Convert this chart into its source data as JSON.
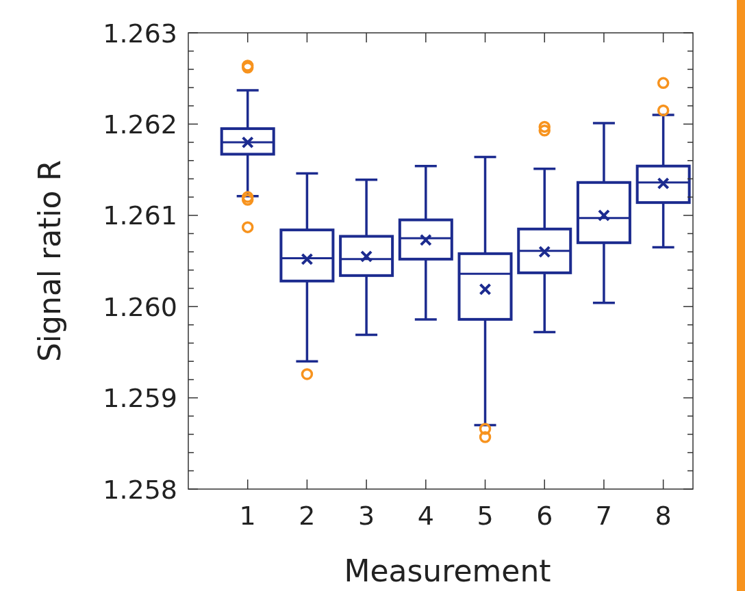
{
  "chart_data": {
    "type": "box",
    "xlabel": "Measurement",
    "ylabel": "Signal ratio R",
    "x": [
      1,
      2,
      3,
      4,
      5,
      6,
      7,
      8
    ],
    "xlim": [
      0,
      8.5
    ],
    "xticks": [
      1,
      2,
      3,
      4,
      5,
      6,
      7,
      8
    ],
    "ylim": [
      1.258,
      1.263
    ],
    "yticks": [
      1.258,
      {
        "value": 1.2582,
        "label": null
      },
      {
        "value": 1.2584,
        "label": null
      },
      {
        "value": 1.2586,
        "label": null
      },
      {
        "value": 1.2588,
        "label": null
      },
      1.259,
      {
        "value": 1.2592,
        "label": null
      },
      {
        "value": 1.2594,
        "label": null
      },
      {
        "value": 1.2596,
        "label": null
      },
      {
        "value": 1.2598,
        "label": null
      },
      {
        "value": 1.26,
        "label": "1.260"
      },
      {
        "value": 1.2602,
        "label": null
      },
      {
        "value": 1.2604,
        "label": null
      },
      {
        "value": 1.2606,
        "label": null
      },
      {
        "value": 1.2608,
        "label": null
      },
      1.261,
      {
        "value": 1.2612,
        "label": null
      },
      {
        "value": 1.2614,
        "label": null
      },
      {
        "value": 1.2616,
        "label": null
      },
      {
        "value": 1.2618,
        "label": null
      },
      1.262,
      {
        "value": 1.2622,
        "label": null
      },
      {
        "value": 1.2624,
        "label": null
      },
      {
        "value": 1.2626,
        "label": null
      },
      {
        "value": 1.2628,
        "label": null
      },
      1.263
    ],
    "grid": false,
    "series": [
      {
        "color": "#1c2b8f",
        "boxes": [
          {
            "low": 1.26121,
            "q1": 1.26167,
            "median": 1.2618,
            "q3": 1.26195,
            "high": 1.26237,
            "mean": 1.2618
          },
          {
            "low": 1.2594,
            "q1": 1.26028,
            "median": 1.26053,
            "q3": 1.26084,
            "high": 1.26146,
            "mean": 1.26052
          },
          {
            "low": 1.25969,
            "q1": 1.26034,
            "median": 1.26052,
            "q3": 1.26077,
            "high": 1.26139,
            "mean": 1.26055
          },
          {
            "low": 1.25986,
            "q1": 1.26052,
            "median": 1.26075,
            "q3": 1.26095,
            "high": 1.26154,
            "mean": 1.26073
          },
          {
            "low": 1.2587,
            "q1": 1.25986,
            "median": 1.26036,
            "q3": 1.26058,
            "high": 1.26164,
            "mean": 1.26019
          },
          {
            "low": 1.25972,
            "q1": 1.26037,
            "median": 1.26061,
            "q3": 1.26085,
            "high": 1.26151,
            "mean": 1.2606
          },
          {
            "low": 1.26004,
            "q1": 1.2607,
            "median": 1.26097,
            "q3": 1.26136,
            "high": 1.26201,
            "mean": 1.261
          },
          {
            "low": 1.26065,
            "q1": 1.26114,
            "median": 1.26136,
            "q3": 1.26154,
            "high": 1.2621,
            "mean": 1.26135
          }
        ]
      },
      {
        "type": "scatter",
        "color": "#f7931e",
        "marker": "circle",
        "x": [
          1,
          1,
          1,
          1,
          1,
          2,
          5,
          5,
          6,
          6,
          8,
          8
        ],
        "values": [
          1.26264,
          1.26262,
          1.2612,
          1.26117,
          1.26087,
          1.25926,
          1.25866,
          1.25857,
          1.26197,
          1.26193,
          1.26245,
          1.26215
        ]
      }
    ]
  }
}
